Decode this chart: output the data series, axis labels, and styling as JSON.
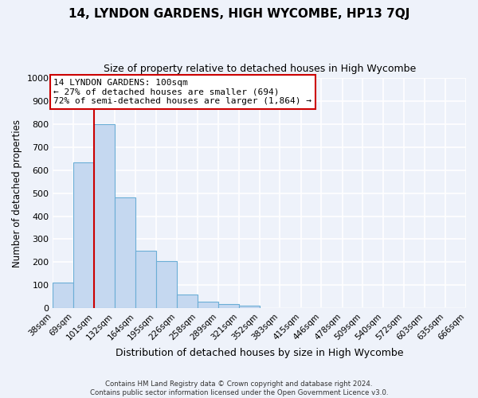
{
  "title": "14, LYNDON GARDENS, HIGH WYCOMBE, HP13 7QJ",
  "subtitle": "Size of property relative to detached houses in High Wycombe",
  "xlabel": "Distribution of detached houses by size in High Wycombe",
  "ylabel": "Number of detached properties",
  "bar_values": [
    110,
    635,
    800,
    480,
    250,
    205,
    60,
    28,
    18,
    10,
    0,
    0,
    0,
    0,
    0,
    0,
    0,
    0,
    0,
    0
  ],
  "bin_labels": [
    "38sqm",
    "69sqm",
    "101sqm",
    "132sqm",
    "164sqm",
    "195sqm",
    "226sqm",
    "258sqm",
    "289sqm",
    "321sqm",
    "352sqm",
    "383sqm",
    "415sqm",
    "446sqm",
    "478sqm",
    "509sqm",
    "540sqm",
    "572sqm",
    "603sqm",
    "635sqm",
    "666sqm"
  ],
  "bar_color": "#c5d8f0",
  "bar_edge_color": "#6baed6",
  "all_bins": [
    38,
    69,
    101,
    132,
    164,
    195,
    226,
    258,
    289,
    321,
    352,
    383,
    415,
    446,
    478,
    509,
    540,
    572,
    603,
    635,
    666
  ],
  "property_line_x": 101,
  "ylim": [
    0,
    1000
  ],
  "yticks": [
    0,
    100,
    200,
    300,
    400,
    500,
    600,
    700,
    800,
    900,
    1000
  ],
  "annotation_line1": "14 LYNDON GARDENS: 100sqm",
  "annotation_line2": "← 27% of detached houses are smaller (694)",
  "annotation_line3": "72% of semi-detached houses are larger (1,864) →",
  "footer_line1": "Contains HM Land Registry data © Crown copyright and database right 2024.",
  "footer_line2": "Contains public sector information licensed under the Open Government Licence v3.0.",
  "background_color": "#eef2fa",
  "grid_color": "#ffffff",
  "annotation_box_color": "#ffffff",
  "annotation_box_edge": "#cc0000",
  "red_line_color": "#cc0000",
  "title_fontsize": 11,
  "subtitle_fontsize": 9
}
